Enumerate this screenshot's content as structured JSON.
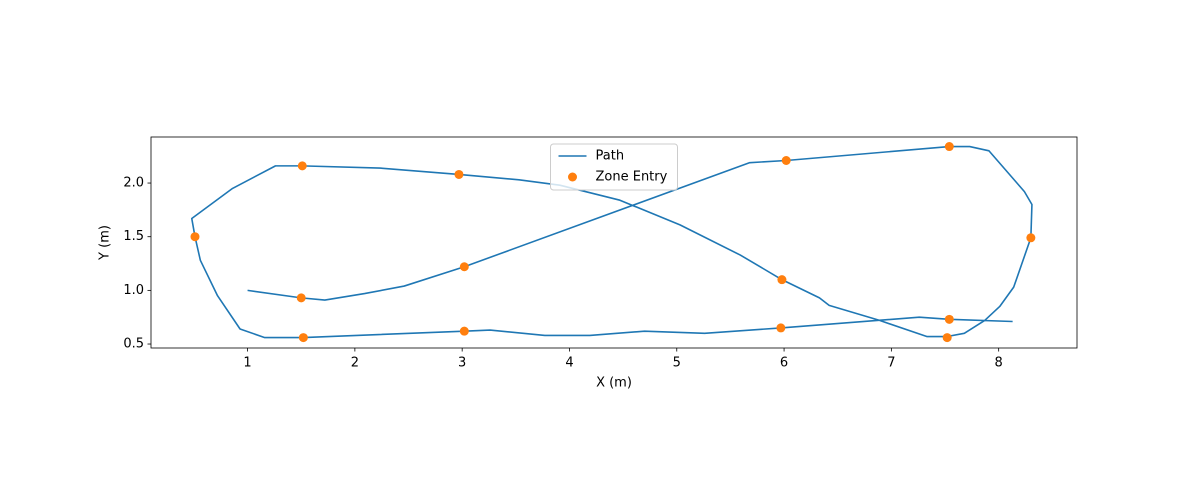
{
  "chart_data": {
    "type": "line",
    "xlabel": "X (m)",
    "ylabel": "Y (m)",
    "xlim": [
      0.1,
      8.73
    ],
    "ylim": [
      0.463,
      2.429
    ],
    "xticks": [
      1,
      2,
      3,
      4,
      5,
      6,
      7,
      8
    ],
    "yticks": [
      0.5,
      {
        "value": 1,
        "label": "1.0"
      },
      1.5,
      {
        "value": 2,
        "label": "2.0"
      }
    ],
    "legend": "upper center",
    "series": [
      {
        "name": "Path",
        "type": "line",
        "color": "#1f77b4",
        "x": [
          1.0,
          1.5,
          1.72,
          2.09,
          2.46,
          3.02,
          5.68,
          6.02,
          7.54,
          7.73,
          7.91,
          8.24,
          8.31,
          8.3,
          8.14,
          8.01,
          7.87,
          7.68,
          7.52,
          7.33,
          6.89,
          6.42,
          6.33,
          5.98,
          5.59,
          5.03,
          4.47,
          3.91,
          3.53,
          2.97,
          2.23,
          1.51,
          1.26,
          0.86,
          0.48,
          0.51,
          0.56,
          0.72,
          0.93,
          1.16,
          1.52,
          3.02,
          3.26,
          3.77,
          4.19,
          4.7,
          5.26,
          5.97,
          7.26,
          7.54,
          8.13
        ],
        "y": [
          1.0,
          0.93,
          0.91,
          0.97,
          1.04,
          1.22,
          2.19,
          2.21,
          2.34,
          2.34,
          2.3,
          1.92,
          1.8,
          1.49,
          1.03,
          0.85,
          0.72,
          0.6,
          0.57,
          0.57,
          0.72,
          0.86,
          0.93,
          1.1,
          1.33,
          1.61,
          1.84,
          1.98,
          2.03,
          2.08,
          2.14,
          2.16,
          2.16,
          1.95,
          1.67,
          1.5,
          1.28,
          0.95,
          0.64,
          0.56,
          0.56,
          0.62,
          0.63,
          0.58,
          0.58,
          0.62,
          0.6,
          0.65,
          0.75,
          0.73,
          0.71
        ]
      },
      {
        "name": "Zone Entry",
        "type": "scatter",
        "color": "#ff7f0e",
        "x": [
          1.51,
          2.97,
          6.02,
          7.54,
          0.51,
          8.3,
          3.02,
          1.5,
          5.98,
          7.54,
          1.52,
          3.02,
          5.97,
          7.52
        ],
        "y": [
          2.16,
          2.08,
          2.21,
          2.34,
          1.5,
          1.49,
          1.22,
          0.93,
          1.1,
          0.73,
          0.56,
          0.62,
          0.65,
          0.56
        ]
      }
    ]
  }
}
